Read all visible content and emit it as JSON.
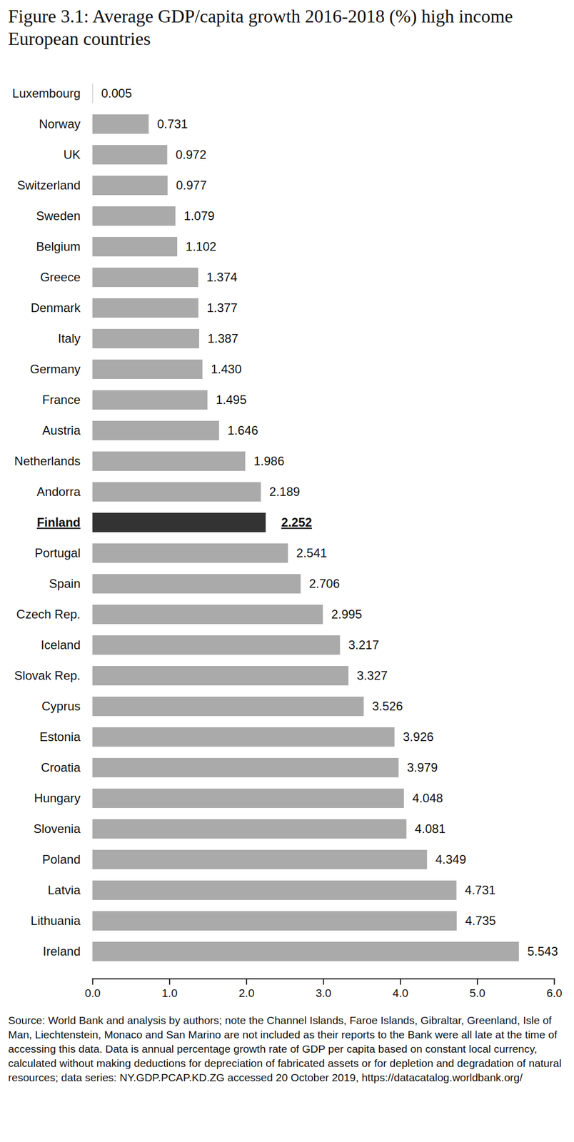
{
  "chart_data": {
    "type": "bar",
    "orientation": "horizontal",
    "title": "Figure 3.1: Average GDP/capita growth 2016-2018 (%) high income European countries",
    "categories": [
      "Luxembourg",
      "Norway",
      "UK",
      "Switzerland",
      "Sweden",
      "Belgium",
      "Greece",
      "Denmark",
      "Italy",
      "Germany",
      "France",
      "Austria",
      "Netherlands",
      "Andorra",
      "Finland",
      "Portugal",
      "Spain",
      "Czech Rep.",
      "Iceland",
      "Slovak Rep.",
      "Cyprus",
      "Estonia",
      "Croatia",
      "Hungary",
      "Slovenia",
      "Poland",
      "Latvia",
      "Lithuania",
      "Ireland"
    ],
    "values": [
      0.005,
      0.731,
      0.972,
      0.977,
      1.079,
      1.102,
      1.374,
      1.377,
      1.387,
      1.43,
      1.495,
      1.646,
      1.986,
      2.189,
      2.252,
      2.541,
      2.706,
      2.995,
      3.217,
      3.327,
      3.526,
      3.926,
      3.979,
      4.048,
      4.081,
      4.349,
      4.731,
      4.735,
      5.543
    ],
    "value_labels": [
      "0.005",
      "0.731",
      "0.972",
      "0.977",
      "1.079",
      "1.102",
      "1.374",
      "1.377",
      "1.387",
      "1.430",
      "1.495",
      "1.646",
      "1.986",
      "2.189",
      "2.252",
      "2.541",
      "2.706",
      "2.995",
      "3.217",
      "3.327",
      "3.526",
      "3.926",
      "3.979",
      "4.048",
      "4.081",
      "4.349",
      "4.731",
      "4.735",
      "5.543"
    ],
    "colors": [
      "#aaaaaa",
      "#aaaaaa",
      "#aaaaaa",
      "#aaaaaa",
      "#aaaaaa",
      "#aaaaaa",
      "#aaaaaa",
      "#aaaaaa",
      "#aaaaaa",
      "#aaaaaa",
      "#aaaaaa",
      "#aaaaaa",
      "#aaaaaa",
      "#aaaaaa",
      "#333333",
      "#aaaaaa",
      "#aaaaaa",
      "#aaaaaa",
      "#aaaaaa",
      "#aaaaaa",
      "#aaaaaa",
      "#aaaaaa",
      "#aaaaaa",
      "#aaaaaa",
      "#aaaaaa",
      "#aaaaaa",
      "#aaaaaa",
      "#aaaaaa",
      "#aaaaaa"
    ],
    "xlim": [
      0,
      6
    ],
    "xticks": [
      0,
      1,
      2,
      3,
      4,
      5,
      6
    ],
    "data_labels": true,
    "grid": false,
    "caption": "Source: World Bank and analysis by authors; note the Channel Islands, Faroe Islands, Gibraltar, Greenland, Isle of Man, Liechtenstein, Monaco and San Marino are not included as their reports to the Bank were all late at the time of accessing this data. Data is annual percentage growth rate of GDP per capita based on constant local currency, calculated without making deductions for depreciation of fabricated assets or for depletion and degradation of natural resources; data series: NY.GDP.PCAP.KD.ZG accessed 20 October 2019, https://datacatalog.worldbank.org/"
  }
}
